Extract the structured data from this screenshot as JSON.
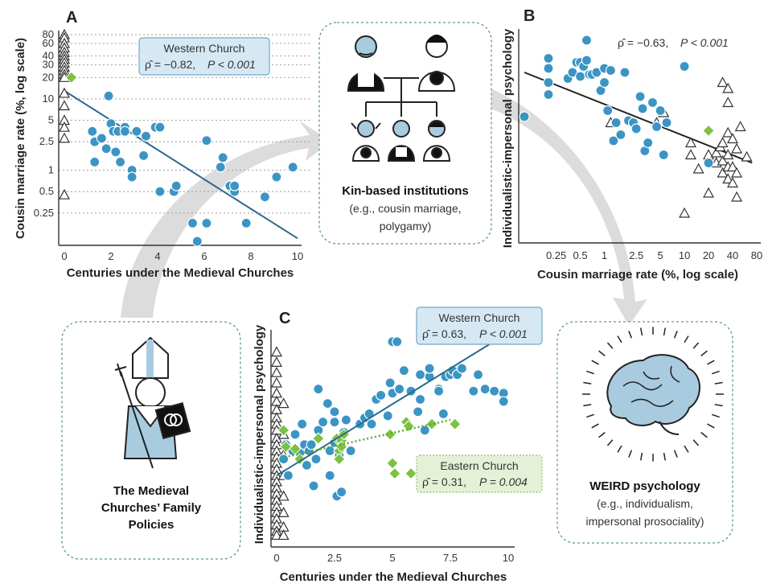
{
  "colors": {
    "western": "#3b95c4",
    "eastern": "#7dc142",
    "triangle": "#333333",
    "west_line": "#2a6a8c",
    "east_line": "#5aa82e"
  },
  "panels": {
    "a": {
      "label": "A",
      "stat_title": "Western Church",
      "rho": "ρ̂ = −0.82,",
      "p": "P < 0.001"
    },
    "b": {
      "label": "B",
      "rho": "ρ̂ = −0.63,",
      "p": "P < 0.001"
    },
    "c": {
      "label": "C",
      "west_title": "Western Church",
      "west_rho": "ρ̂ = 0.63,",
      "west_p": "P < 0.001",
      "east_title": "Eastern Church",
      "east_rho": "ρ̂ = 0.31,",
      "east_p": "P = 0.004"
    }
  },
  "boxes": {
    "kin_title": "Kin-based institutions",
    "kin_sub1": "(e.g., cousin marriage,",
    "kin_sub2": "polygamy)",
    "church_1": "The Medieval",
    "church_2": "Churches’ Family",
    "church_3": "Policies",
    "weird_title": "WEIRD psychology",
    "weird_sub1": "(e.g., individualism,",
    "weird_sub2": "impersonal prosociality)"
  },
  "chart_data": [
    {
      "panel": "A",
      "type": "scatter",
      "xlabel": "Centuries under the Medieval Churches",
      "ylabel": "Cousin marriage rate (%, log scale)",
      "xlim": [
        -0.3,
        10.2
      ],
      "ylim": [
        0.1,
        80
      ],
      "y_scale": "log",
      "x_ticks": [
        0,
        2,
        4,
        6,
        8,
        10
      ],
      "y_ticks": [
        0.25,
        0.5,
        1,
        2.5,
        5,
        10,
        20,
        30,
        40,
        60,
        80
      ],
      "y_tick_labels": [
        "0.25",
        "0.5",
        "1",
        "2.5",
        "5",
        "10",
        "20",
        "30",
        "40",
        "60",
        "80"
      ],
      "grid": "horizontal dotted",
      "western": [
        [
          1.2,
          3.5
        ],
        [
          1.3,
          2.5
        ],
        [
          1.3,
          1.3
        ],
        [
          1.6,
          2.8
        ],
        [
          1.8,
          2
        ],
        [
          1.9,
          11
        ],
        [
          2,
          4.5
        ],
        [
          2.1,
          3.5
        ],
        [
          2.2,
          1.8
        ],
        [
          2.3,
          3.5
        ],
        [
          2.4,
          1.3
        ],
        [
          2.6,
          4
        ],
        [
          2.6,
          3.5
        ],
        [
          2.9,
          1
        ],
        [
          2.9,
          0.8
        ],
        [
          3.1,
          3.5
        ],
        [
          3.4,
          1.6
        ],
        [
          3.5,
          3
        ],
        [
          3.9,
          4
        ],
        [
          4.1,
          4
        ],
        [
          4.1,
          0.5
        ],
        [
          4.7,
          0.5
        ],
        [
          4.8,
          0.6
        ],
        [
          5.5,
          0.18
        ],
        [
          5.7,
          0.1
        ],
        [
          6.1,
          2.6
        ],
        [
          6.1,
          0.18
        ],
        [
          6.7,
          1.1
        ],
        [
          6.8,
          1.5
        ],
        [
          7.1,
          0.6
        ],
        [
          7.3,
          0.5
        ],
        [
          7.3,
          0.6
        ],
        [
          7.8,
          0.18
        ],
        [
          8.6,
          0.42
        ],
        [
          9.1,
          0.8
        ],
        [
          9.8,
          1.1
        ]
      ],
      "eastern": [
        [
          0.3,
          20
        ]
      ],
      "other": [
        [
          0,
          80
        ],
        [
          0,
          72
        ],
        [
          0,
          60
        ],
        [
          0,
          52
        ],
        [
          0,
          45
        ],
        [
          0,
          40
        ],
        [
          0,
          36
        ],
        [
          0,
          32
        ],
        [
          0,
          28
        ],
        [
          0,
          25
        ],
        [
          0,
          22
        ],
        [
          0,
          20
        ],
        [
          0,
          12
        ],
        [
          0,
          8
        ],
        [
          0,
          5
        ],
        [
          0,
          4
        ],
        [
          0,
          2.8
        ],
        [
          0,
          0.45
        ]
      ],
      "fit": {
        "x": [
          0,
          10
        ],
        "y": [
          13,
          0.11
        ]
      }
    },
    {
      "panel": "B",
      "type": "scatter",
      "xlabel": "Cousin marriage rate (%, log scale)",
      "ylabel": "Individualistic-impersonal psychology",
      "xlim": [
        0.1,
        80
      ],
      "x_scale": "log",
      "x_ticks": [
        0.25,
        0.5,
        1,
        2.5,
        5,
        10,
        20,
        40,
        80
      ],
      "x_tick_labels": [
        "0.25",
        "0.5",
        "1",
        "2.5",
        "5",
        "10",
        "20",
        "40",
        "80"
      ],
      "ylim": [
        0,
        1
      ],
      "western": [
        [
          0.1,
          0.58
        ],
        [
          0.2,
          0.87
        ],
        [
          0.2,
          0.82
        ],
        [
          0.2,
          0.75
        ],
        [
          0.2,
          0.69
        ],
        [
          0.35,
          0.77
        ],
        [
          0.4,
          0.8
        ],
        [
          0.45,
          0.85
        ],
        [
          0.5,
          0.85
        ],
        [
          0.5,
          0.78
        ],
        [
          0.55,
          0.83
        ],
        [
          0.6,
          0.86
        ],
        [
          0.6,
          0.96
        ],
        [
          0.65,
          0.79
        ],
        [
          0.7,
          0.79
        ],
        [
          0.8,
          0.8
        ],
        [
          0.9,
          0.71
        ],
        [
          1,
          0.75
        ],
        [
          1,
          0.82
        ],
        [
          1.1,
          0.61
        ],
        [
          1.2,
          0.81
        ],
        [
          1.3,
          0.46
        ],
        [
          1.4,
          0.55
        ],
        [
          1.6,
          0.49
        ],
        [
          1.8,
          0.8
        ],
        [
          2,
          0.56
        ],
        [
          2.3,
          0.55
        ],
        [
          2.5,
          0.52
        ],
        [
          2.8,
          0.68
        ],
        [
          3,
          0.62
        ],
        [
          3.2,
          0.41
        ],
        [
          3.5,
          0.45
        ],
        [
          4,
          0.65
        ],
        [
          4.5,
          0.53
        ],
        [
          5,
          0.61
        ],
        [
          5.5,
          0.39
        ],
        [
          6,
          0.55
        ],
        [
          10,
          0.83
        ],
        [
          20,
          0.35
        ]
      ],
      "eastern": [
        [
          20,
          0.51
        ]
      ],
      "other": [
        [
          1.2,
          0.55
        ],
        [
          4.5,
          0.55
        ],
        [
          5.5,
          0.6
        ],
        [
          10,
          0.1
        ],
        [
          12,
          0.45
        ],
        [
          12,
          0.39
        ],
        [
          15,
          0.32
        ],
        [
          20,
          0.2
        ],
        [
          20,
          0.39
        ],
        [
          25,
          0.4
        ],
        [
          25,
          0.35
        ],
        [
          28,
          0.43
        ],
        [
          30,
          0.45
        ],
        [
          30,
          0.75
        ],
        [
          30,
          0.36
        ],
        [
          30,
          0.3
        ],
        [
          35,
          0.72
        ],
        [
          35,
          0.65
        ],
        [
          35,
          0.5
        ],
        [
          35,
          0.39
        ],
        [
          35,
          0.33
        ],
        [
          35,
          0.27
        ],
        [
          40,
          0.47
        ],
        [
          40,
          0.33
        ],
        [
          40,
          0.25
        ],
        [
          45,
          0.42
        ],
        [
          45,
          0.3
        ],
        [
          45,
          0.18
        ],
        [
          50,
          0.53
        ],
        [
          60,
          0.38
        ]
      ],
      "fit": {
        "x": [
          0.1,
          70
        ],
        "y": [
          0.8,
          0.35
        ]
      }
    },
    {
      "panel": "C",
      "type": "scatter",
      "xlabel": "Centuries under the Medieval Churches",
      "ylabel": "Individualistic-impersonal psychology",
      "xlim": [
        -0.3,
        10.2
      ],
      "x_ticks": [
        0,
        2.5,
        5,
        7.5,
        10
      ],
      "x_tick_labels": [
        "0",
        "2.5",
        "5",
        "7.5",
        "10"
      ],
      "ylim": [
        0,
        1
      ],
      "western": [
        [
          0.3,
          0.38
        ],
        [
          0.4,
          0.45
        ],
        [
          0.5,
          0.3
        ],
        [
          0.7,
          0.42
        ],
        [
          0.8,
          0.5
        ],
        [
          1,
          0.41
        ],
        [
          1.1,
          0.55
        ],
        [
          1.2,
          0.45
        ],
        [
          1.3,
          0.35
        ],
        [
          1.4,
          0.42
        ],
        [
          1.5,
          0.45
        ],
        [
          1.6,
          0.25
        ],
        [
          1.7,
          0.38
        ],
        [
          1.8,
          0.52
        ],
        [
          1.8,
          0.72
        ],
        [
          2,
          0.56
        ],
        [
          2.2,
          0.65
        ],
        [
          2.3,
          0.42
        ],
        [
          2.3,
          0.3
        ],
        [
          2.5,
          0.46
        ],
        [
          2.5,
          0.61
        ],
        [
          2.5,
          0.56
        ],
        [
          2.6,
          0.2
        ],
        [
          2.7,
          0.4
        ],
        [
          2.8,
          0.22
        ],
        [
          2.9,
          0.51
        ],
        [
          3,
          0.57
        ],
        [
          3.2,
          0.42
        ],
        [
          3.6,
          0.55
        ],
        [
          3.8,
          0.58
        ],
        [
          4,
          0.6
        ],
        [
          4.1,
          0.55
        ],
        [
          4.3,
          0.67
        ],
        [
          4.5,
          0.69
        ],
        [
          4.8,
          0.59
        ],
        [
          4.9,
          0.75
        ],
        [
          5,
          0.7
        ],
        [
          5,
          0.95
        ],
        [
          5.2,
          0.95
        ],
        [
          5.3,
          0.72
        ],
        [
          5.5,
          0.81
        ],
        [
          5.8,
          0.71
        ],
        [
          6.1,
          0.61
        ],
        [
          6.2,
          0.79
        ],
        [
          6.2,
          0.67
        ],
        [
          6.4,
          0.52
        ],
        [
          6.6,
          0.78
        ],
        [
          6.6,
          0.82
        ],
        [
          7,
          0.72
        ],
        [
          7,
          0.71
        ],
        [
          7.2,
          0.6
        ],
        [
          7.3,
          0.78
        ],
        [
          7.5,
          0.79
        ],
        [
          7.6,
          0.81
        ],
        [
          7.8,
          0.79
        ],
        [
          8,
          0.82
        ],
        [
          8.5,
          0.71
        ],
        [
          8.7,
          0.79
        ],
        [
          9,
          0.72
        ],
        [
          9.4,
          0.71
        ],
        [
          9.8,
          0.7
        ],
        [
          9.8,
          0.66
        ]
      ],
      "eastern": [
        [
          0.3,
          0.52
        ],
        [
          0.4,
          0.44
        ],
        [
          0.8,
          0.43
        ],
        [
          1,
          0.38
        ],
        [
          1.8,
          0.48
        ],
        [
          2.6,
          0.48
        ],
        [
          2.7,
          0.42
        ],
        [
          2.7,
          0.38
        ],
        [
          2.8,
          0.47
        ],
        [
          2.8,
          0.44
        ],
        [
          2.9,
          0.5
        ],
        [
          4.9,
          0.5
        ],
        [
          5,
          0.36
        ],
        [
          5.1,
          0.31
        ],
        [
          5.6,
          0.56
        ],
        [
          5.7,
          0.54
        ],
        [
          5.8,
          0.31
        ],
        [
          6.7,
          0.55
        ],
        [
          7.7,
          0.55
        ]
      ],
      "other": [
        [
          0,
          0.9
        ],
        [
          0,
          0.85
        ],
        [
          0,
          0.8
        ],
        [
          0,
          0.75
        ],
        [
          0,
          0.7
        ],
        [
          0,
          0.66
        ],
        [
          0,
          0.62
        ],
        [
          0,
          0.58
        ],
        [
          0,
          0.55
        ],
        [
          0,
          0.52
        ],
        [
          0,
          0.48
        ],
        [
          0,
          0.45
        ],
        [
          0,
          0.42
        ],
        [
          0,
          0.39
        ],
        [
          0,
          0.36
        ],
        [
          0,
          0.33
        ],
        [
          0,
          0.3
        ],
        [
          0,
          0.27
        ],
        [
          0,
          0.24
        ],
        [
          0,
          0.21
        ],
        [
          0,
          0.18
        ],
        [
          0,
          0.15
        ],
        [
          0,
          0.12
        ],
        [
          0,
          0.09
        ],
        [
          0,
          0.06
        ],
        [
          0,
          0.03
        ],
        [
          0,
          0.01
        ],
        [
          0.3,
          0.65
        ],
        [
          0.3,
          0.5
        ],
        [
          0.3,
          0.4
        ],
        [
          0.3,
          0.3
        ],
        [
          0.3,
          0.2
        ],
        [
          0.3,
          0.12
        ],
        [
          0.3,
          0.05
        ],
        [
          0.3,
          0.01
        ]
      ],
      "fit_western": {
        "x": [
          0,
          9.8
        ],
        "y": [
          0.3,
          0.98
        ]
      },
      "fit_eastern": {
        "x": [
          0,
          7.5
        ],
        "y": [
          0.38,
          0.57
        ]
      }
    }
  ]
}
